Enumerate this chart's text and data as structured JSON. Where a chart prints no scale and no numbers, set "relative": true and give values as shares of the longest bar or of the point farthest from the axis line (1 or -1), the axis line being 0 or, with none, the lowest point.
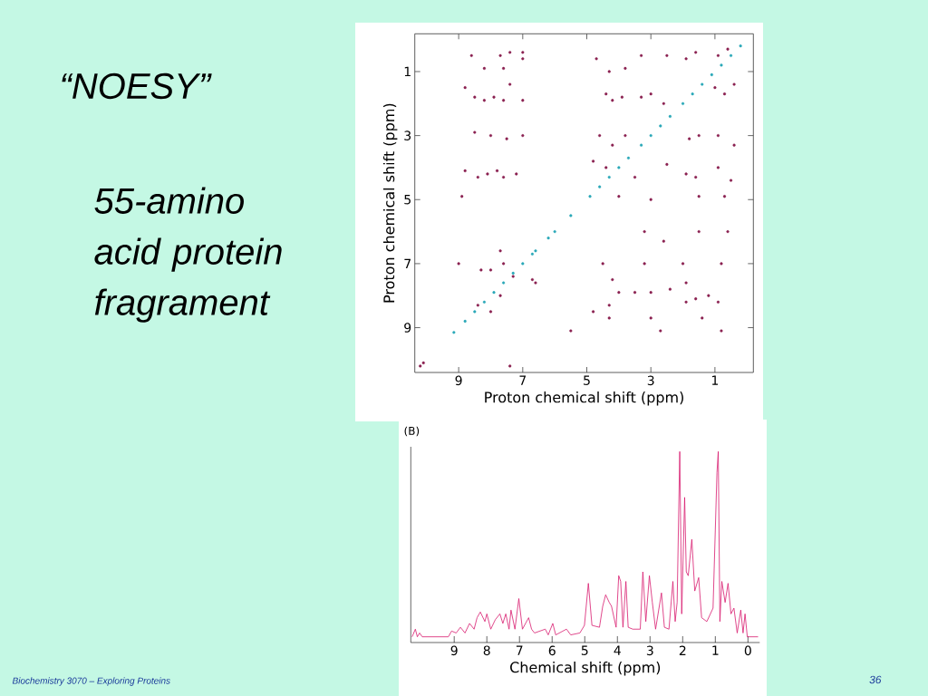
{
  "chart_data": [
    {
      "type": "scatter",
      "title": "“NOESY”",
      "xlabel": "Proton chemical shift (ppm)",
      "ylabel": "Proton chemical shift (ppm)",
      "annotations": [
        "55-amino acid protein fragrament",
        "Biochemistry 3070 – Exploring Proteins",
        "36"
      ],
      "xlim": [
        10.37,
        -0.2
      ],
      "ylim": [
        10.4,
        -0.18
      ],
      "xticks": [
        9,
        7,
        5,
        3,
        1
      ],
      "yticks": [
        1,
        3,
        5,
        7,
        9
      ],
      "marker": "circle",
      "series": [
        {
          "color": "#2aa8b8",
          "x": [
            9.15,
            8.8,
            8.5,
            8.2,
            7.9,
            7.6,
            7.3,
            7.0,
            6.7,
            6.6,
            6.2,
            6.0,
            5.5,
            4.9,
            4.6,
            4.3,
            4.0,
            3.7,
            3.3,
            3.0,
            2.7,
            2.4,
            2.0,
            1.7,
            1.4,
            1.1,
            0.8,
            0.5,
            0.2
          ],
          "values": [
            9.15,
            8.8,
            8.5,
            8.2,
            7.9,
            7.6,
            7.3,
            7.0,
            6.7,
            6.6,
            6.2,
            6.0,
            5.5,
            4.9,
            4.6,
            4.3,
            4.0,
            3.7,
            3.3,
            3.0,
            2.7,
            2.4,
            2.0,
            1.7,
            1.4,
            1.1,
            0.8,
            0.5,
            0.2
          ]
        },
        {
          "color": "#8a2050",
          "x": [
            8.6,
            7.7,
            7.4,
            7.0,
            8.2,
            7.6,
            7.0,
            8.8,
            8.5,
            8.2,
            7.9,
            7.6,
            7.4,
            7.0,
            8.5,
            8.0,
            7.5,
            7.0,
            8.8,
            8.4,
            8.1,
            7.8,
            7.6,
            7.2,
            8.9,
            4.7,
            4.3,
            3.8,
            3.3,
            2.5,
            1.9,
            1.6,
            0.9,
            0.6,
            4.4,
            4.2,
            3.9,
            3.3,
            3.0,
            2.6,
            1.0,
            0.7,
            0.4,
            4.6,
            4.2,
            3.8,
            1.8,
            1.5,
            0.9,
            0.4,
            4.8,
            4.4,
            3.5,
            2.5,
            1.9,
            1.6,
            0.9,
            0.5,
            4.0,
            3.0,
            1.5,
            0.7,
            3.2,
            2.6,
            1.5,
            0.6,
            4.5,
            3.2,
            2.0,
            0.8,
            4.2,
            4.0,
            4.3,
            3.5,
            3.0,
            2.4,
            1.9,
            1.9,
            1.6,
            1.2,
            1.4,
            0.9,
            4.3,
            3.0,
            2.7,
            0.8,
            4.8,
            8.3,
            8.0,
            7.7,
            7.6,
            7.3,
            7.7,
            8.4,
            8.0,
            6.7,
            6.6,
            9.0,
            10.2,
            10.1,
            7.4,
            5.5
          ],
          "values": [
            0.5,
            0.5,
            0.4,
            0.4,
            0.9,
            0.9,
            0.6,
            1.5,
            1.8,
            1.9,
            1.8,
            1.9,
            1.4,
            1.9,
            2.9,
            3.0,
            3.1,
            3.0,
            4.1,
            4.3,
            4.2,
            4.1,
            4.3,
            4.2,
            4.9,
            0.6,
            1.0,
            0.9,
            0.5,
            0.5,
            0.6,
            0.4,
            0.5,
            0.3,
            1.7,
            1.9,
            1.8,
            1.8,
            1.7,
            2.0,
            1.5,
            1.7,
            1.4,
            3.0,
            3.3,
            3.0,
            3.1,
            3.0,
            3.0,
            3.3,
            3.8,
            4.0,
            4.3,
            3.9,
            4.2,
            4.3,
            4.0,
            4.4,
            4.9,
            5.0,
            4.9,
            4.9,
            6.0,
            6.3,
            6.0,
            6.0,
            7.0,
            7.0,
            7.0,
            7.0,
            7.5,
            7.9,
            8.3,
            7.9,
            7.9,
            7.8,
            7.6,
            8.2,
            8.1,
            8.0,
            8.7,
            8.2,
            8.7,
            8.7,
            9.1,
            9.1,
            8.5,
            7.2,
            7.2,
            6.6,
            7.0,
            7.4,
            8.0,
            8.3,
            8.5,
            7.5,
            7.6,
            7.0,
            10.2,
            10.1,
            10.2,
            9.1
          ]
        }
      ]
    },
    {
      "type": "line",
      "xlabel": "Chemical shift (ppm)",
      "annotations": [
        "(B)"
      ],
      "relative": true,
      "marker": "none",
      "xlim": [
        10.33,
        -0.36
      ],
      "xticks": [
        9,
        8,
        7,
        6,
        5,
        4,
        3,
        2,
        1,
        0
      ],
      "series": [
        {
          "color": "#d81b6e",
          "x": [
            10.29,
            10.19,
            10.13,
            10.06,
            9.98,
            9.18,
            9.08,
            8.94,
            8.81,
            8.67,
            8.53,
            8.39,
            8.3,
            8.2,
            8.06,
            8.0,
            7.88,
            7.74,
            7.6,
            7.51,
            7.42,
            7.32,
            7.26,
            7.14,
            7.02,
            6.91,
            6.72,
            6.63,
            6.54,
            6.21,
            6.12,
            5.98,
            5.89,
            5.56,
            5.43,
            5.15,
            5.01,
            4.89,
            4.78,
            4.55,
            4.45,
            4.36,
            4.25,
            4.18,
            4.04,
            3.96,
            3.9,
            3.83,
            3.74,
            3.67,
            3.53,
            3.3,
            3.22,
            3.13,
            3.02,
            2.93,
            2.83,
            2.65,
            2.56,
            2.42,
            2.3,
            2.23,
            2.17,
            2.09,
            2.03,
            1.94,
            1.89,
            1.83,
            1.72,
            1.63,
            1.51,
            1.42,
            1.26,
            1.07,
            0.95,
            0.91,
            0.86,
            0.8,
            0.7,
            0.61,
            0.52,
            0.43,
            0.33,
            0.22,
            0.15,
            0.09,
            0.02,
            -0.08,
            -0.31
          ],
          "values": [
            0.03,
            0.07,
            0.03,
            0.05,
            0.03,
            0.03,
            0.06,
            0.05,
            0.08,
            0.05,
            0.1,
            0.07,
            0.13,
            0.16,
            0.11,
            0.15,
            0.07,
            0.12,
            0.15,
            0.1,
            0.15,
            0.07,
            0.17,
            0.07,
            0.23,
            0.07,
            0.13,
            0.07,
            0.05,
            0.07,
            0.04,
            0.1,
            0.04,
            0.07,
            0.04,
            0.05,
            0.09,
            0.31,
            0.09,
            0.08,
            0.19,
            0.25,
            0.21,
            0.19,
            0.08,
            0.35,
            0.32,
            0.08,
            0.32,
            0.08,
            0.07,
            0.07,
            0.37,
            0.11,
            0.35,
            0.21,
            0.07,
            0.26,
            0.08,
            0.07,
            0.32,
            0.11,
            0.21,
            1.0,
            0.15,
            0.76,
            0.37,
            0.35,
            0.54,
            0.27,
            0.34,
            0.13,
            0.11,
            0.18,
            0.89,
            1.0,
            0.11,
            0.32,
            0.21,
            0.31,
            0.15,
            0.18,
            0.05,
            0.17,
            0.05,
            0.15,
            0.03,
            0.03,
            0.03
          ]
        }
      ]
    }
  ]
}
